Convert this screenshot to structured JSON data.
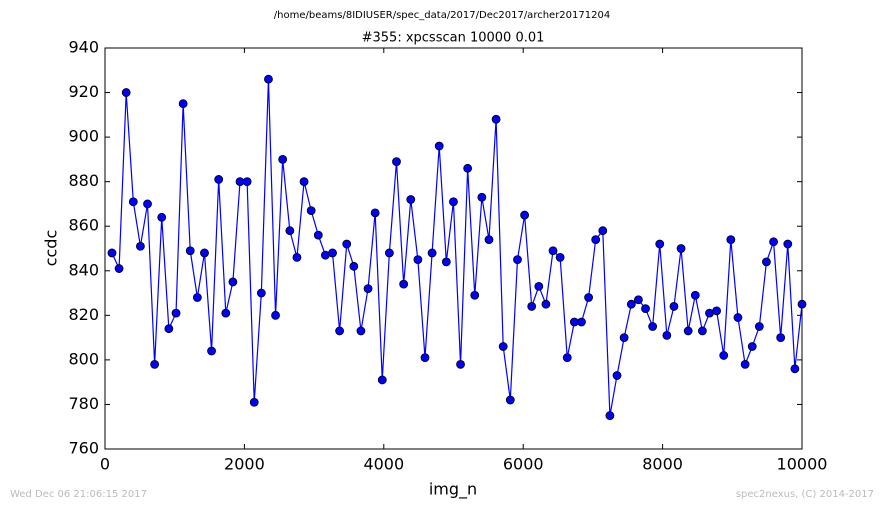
{
  "chart_data": {
    "type": "line",
    "subtitle": "/home/beams/8IDIUSER/spec_data/2017/Dec2017/archer20171204",
    "title": "#355: xpcsscan 10000 0.01",
    "xlabel": "img_n",
    "ylabel": "ccdc",
    "footer_left": "Wed Dec 06 21:06:15 2017",
    "footer_right": "spec2nexus, (C) 2014-2017",
    "xlim": [
      0,
      10000
    ],
    "xticks": [
      0,
      2000,
      4000,
      6000,
      8000,
      10000
    ],
    "ylim": [
      760,
      940
    ],
    "yticks": [
      760,
      780,
      800,
      820,
      840,
      860,
      880,
      900,
      920,
      940
    ],
    "grid": false,
    "x": [
      100,
      202,
      304,
      406,
      508,
      610,
      712,
      814,
      916,
      1019,
      1121,
      1223,
      1325,
      1427,
      1529,
      1631,
      1733,
      1835,
      1937,
      2039,
      2141,
      2243,
      2345,
      2447,
      2549,
      2652,
      2754,
      2856,
      2958,
      3060,
      3162,
      3264,
      3366,
      3468,
      3570,
      3672,
      3774,
      3876,
      3978,
      4080,
      4182,
      4285,
      4387,
      4489,
      4591,
      4693,
      4795,
      4897,
      4999,
      5101,
      5203,
      5305,
      5407,
      5509,
      5611,
      5713,
      5815,
      5918,
      6020,
      6122,
      6224,
      6326,
      6428,
      6530,
      6632,
      6734,
      6836,
      6938,
      7040,
      7142,
      7244,
      7346,
      7448,
      7551,
      7653,
      7755,
      7857,
      7959,
      8061,
      8163,
      8265,
      8367,
      8469,
      8571,
      8673,
      8775,
      8877,
      8979,
      9081,
      9184,
      9286,
      9388,
      9490,
      9592,
      9694,
      9796,
      9898,
      10000
    ],
    "series": [
      {
        "name": "ccdc",
        "color": "#0000ff",
        "marker_edge": "#000000",
        "values": [
          848,
          841,
          920,
          871,
          851,
          870,
          798,
          864,
          814,
          821,
          915,
          849,
          828,
          848,
          804,
          881,
          821,
          835,
          880,
          880,
          781,
          830,
          926,
          820,
          890,
          858,
          846,
          880,
          867,
          856,
          847,
          848,
          813,
          852,
          842,
          813,
          832,
          866,
          791,
          848,
          889,
          834,
          872,
          845,
          801,
          848,
          896,
          844,
          871,
          798,
          886,
          829,
          873,
          854,
          908,
          806,
          782,
          845,
          865,
          824,
          833,
          825,
          849,
          846,
          801,
          817,
          817,
          828,
          854,
          858,
          775,
          793,
          810,
          825,
          827,
          823,
          815,
          852,
          811,
          824,
          850,
          813,
          829,
          813,
          821,
          822,
          802,
          854,
          819,
          798,
          806,
          815,
          844,
          853,
          810,
          852,
          796,
          825
        ]
      }
    ]
  }
}
